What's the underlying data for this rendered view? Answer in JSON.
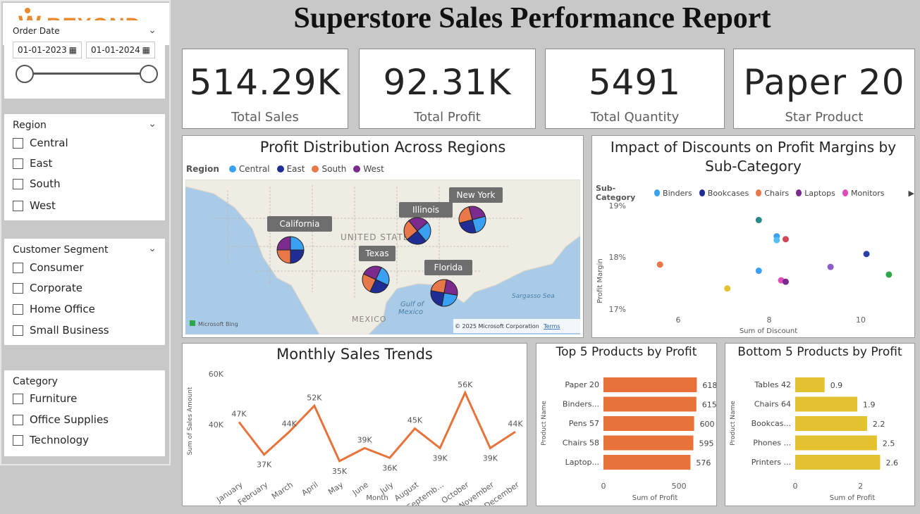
{
  "logo": {
    "w": "W",
    "text": "BEYOND"
  },
  "title": "Superstore Sales Performance Report",
  "filters": {
    "order_date": {
      "label": "Order Date",
      "from": "01-01-2023",
      "to": "01-01-2024"
    },
    "region": {
      "label": "Region",
      "options": [
        "Central",
        "East",
        "South",
        "West"
      ]
    },
    "segment": {
      "label": "Customer Segment",
      "options": [
        "Consumer",
        "Corporate",
        "Home Office",
        "Small Business"
      ]
    },
    "category": {
      "label": "Category",
      "options": [
        "Furniture",
        "Office Supplies",
        "Technology"
      ]
    }
  },
  "kpis": [
    {
      "value": "514.29K",
      "label": "Total Sales"
    },
    {
      "value": "92.31K",
      "label": "Total Profit"
    },
    {
      "value": "5491",
      "label": "Total Quantity"
    },
    {
      "value": "Paper 20",
      "label": "Star Product"
    }
  ],
  "map": {
    "title": "Profit Distribution Across Regions",
    "legend_title": "Region",
    "legend": [
      {
        "name": "Central",
        "color": "#3aa0f3"
      },
      {
        "name": "East",
        "color": "#1f2d95"
      },
      {
        "name": "South",
        "color": "#e8774a"
      },
      {
        "name": "West",
        "color": "#7b2b8e"
      }
    ],
    "cities": [
      "California",
      "Texas",
      "Illinois",
      "New York",
      "Florida"
    ],
    "labels": {
      "country": "UNITED STATES",
      "mexico": "MEXICO",
      "gulf": "Gulf of Mexico",
      "sea": "Sargasso Sea",
      "bing": "Microsoft Bing",
      "copyright": "© 2025 Microsoft Corporation",
      "terms": "Terms"
    }
  },
  "scatter": {
    "title_line1": "Impact of Discounts on Profit Margins by",
    "title_line2": "Sub-Category",
    "legend_title": "Sub-Category",
    "legend": [
      {
        "name": "Binders",
        "color": "#3aa0f3"
      },
      {
        "name": "Bookcases",
        "color": "#1f2d95"
      },
      {
        "name": "Chairs",
        "color": "#e8774a"
      },
      {
        "name": "Laptops",
        "color": "#7b2b8e"
      },
      {
        "name": "Monitors",
        "color": "#e04cb8"
      }
    ],
    "ylabel": "Profit Margin",
    "xlabel": "Sum of Discount",
    "yticks": [
      "19%",
      "18%",
      "17%"
    ],
    "xticks": [
      "6",
      "8",
      "10"
    ]
  },
  "line": {
    "title": "Monthly Sales Trends",
    "ylabel": "Sum of Sales Amount",
    "xlabel": "Month",
    "yticks": [
      "60K",
      "40K"
    ]
  },
  "top5": {
    "title": "Top 5 Products by Profit",
    "ylabel": "Product Name",
    "xlabel": "Sum of Profit",
    "xticks": [
      "0",
      "500"
    ]
  },
  "bottom5": {
    "title": "Bottom 5 Products by Profit",
    "ylabel": "Product Name",
    "xlabel": "Sum of Profit",
    "xticks": [
      "0",
      "2"
    ]
  },
  "chart_data": [
    {
      "type": "scatter",
      "title": "Impact of Discounts on Profit Margins by Sub-Category",
      "xlabel": "Sum of Discount",
      "ylabel": "Profit Margin",
      "xlim": [
        5,
        11
      ],
      "ylim": [
        16.8,
        19.2
      ],
      "points": [
        {
          "x": 5.6,
          "y": 17.85,
          "color": "#e8774a"
        },
        {
          "x": 7.1,
          "y": 17.35,
          "color": "#e3c12f"
        },
        {
          "x": 7.8,
          "y": 17.72,
          "color": "#3aa0f3"
        },
        {
          "x": 7.8,
          "y": 18.78,
          "color": "#2a8a8a"
        },
        {
          "x": 8.2,
          "y": 18.44,
          "color": "#3aa0f3"
        },
        {
          "x": 8.2,
          "y": 18.36,
          "color": "#56c0f0"
        },
        {
          "x": 8.4,
          "y": 18.38,
          "color": "#d0485a"
        },
        {
          "x": 8.3,
          "y": 17.52,
          "color": "#e04cb8"
        },
        {
          "x": 8.4,
          "y": 17.49,
          "color": "#7b2b8e"
        },
        {
          "x": 9.4,
          "y": 17.8,
          "color": "#8a5cc8"
        },
        {
          "x": 10.2,
          "y": 18.07,
          "color": "#2a3fa8"
        },
        {
          "x": 10.7,
          "y": 17.64,
          "color": "#2ca84a"
        }
      ]
    },
    {
      "type": "line",
      "title": "Monthly Sales Trends",
      "xlabel": "Month",
      "ylabel": "Sum of Sales Amount",
      "categories": [
        "January",
        "February",
        "March",
        "April",
        "May",
        "June",
        "July",
        "August",
        "September",
        "October",
        "November",
        "December"
      ],
      "values": [
        47,
        37,
        44,
        52,
        35,
        39,
        36,
        45,
        39,
        56,
        39,
        44
      ],
      "labels": [
        "47K",
        "37K",
        "44K",
        "52K",
        "35K",
        "39K",
        "36K",
        "45K",
        "39K",
        "56K",
        "39K",
        "44K"
      ],
      "ylim": [
        30,
        62
      ]
    },
    {
      "type": "bar",
      "title": "Top 5 Products by Profit",
      "categories": [
        "Paper 20",
        "Binders...",
        "Pens 57",
        "Chairs 58",
        "Laptop..."
      ],
      "values": [
        618,
        615,
        600,
        595,
        576
      ],
      "xlim": [
        0,
        700
      ],
      "color": "#e8733a"
    },
    {
      "type": "bar",
      "title": "Bottom 5 Products by Profit",
      "categories": [
        "Tables 42",
        "Chairs 64",
        "Bookcas...",
        "Phones ...",
        "Printers ..."
      ],
      "values": [
        0.9,
        1.9,
        2.2,
        2.5,
        2.6
      ],
      "xlim": [
        0,
        3
      ],
      "color": "#e3c12f"
    }
  ]
}
